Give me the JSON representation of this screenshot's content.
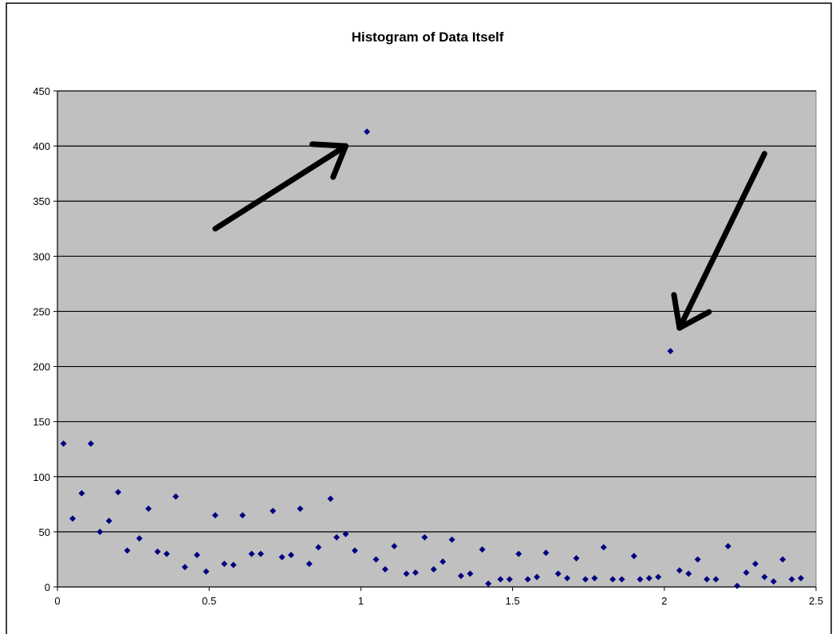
{
  "chart_data": {
    "type": "scatter",
    "title": "Histogram of Data Itself",
    "xlabel": "",
    "ylabel": "",
    "xlim": [
      0,
      2.5
    ],
    "ylim": [
      0,
      450
    ],
    "x_ticks": [
      "0",
      "0.5",
      "1",
      "1.5",
      "2",
      "2.5"
    ],
    "y_ticks": [
      "0",
      "50",
      "100",
      "150",
      "200",
      "250",
      "300",
      "350",
      "400",
      "450"
    ],
    "grid": "horizontal",
    "legend": "none",
    "plot_background": "#c0c0c0",
    "marker_color": "#000080",
    "annotations": [
      {
        "type": "arrow",
        "from": [
          0.52,
          325
        ],
        "to": [
          0.95,
          400
        ],
        "color": "#000000"
      },
      {
        "type": "arrow",
        "from": [
          2.33,
          393
        ],
        "to": [
          2.05,
          235
        ],
        "color": "#000000"
      }
    ],
    "points": [
      [
        0.02,
        130
      ],
      [
        0.05,
        62
      ],
      [
        0.08,
        85
      ],
      [
        0.11,
        130
      ],
      [
        0.14,
        50
      ],
      [
        0.17,
        60
      ],
      [
        0.2,
        86
      ],
      [
        0.23,
        33
      ],
      [
        0.27,
        44
      ],
      [
        0.3,
        71
      ],
      [
        0.33,
        32
      ],
      [
        0.36,
        30
      ],
      [
        0.39,
        82
      ],
      [
        0.42,
        18
      ],
      [
        0.46,
        29
      ],
      [
        0.49,
        14
      ],
      [
        0.52,
        65
      ],
      [
        0.55,
        21
      ],
      [
        0.58,
        20
      ],
      [
        0.61,
        65
      ],
      [
        0.64,
        30
      ],
      [
        0.67,
        30
      ],
      [
        0.71,
        69
      ],
      [
        0.74,
        27
      ],
      [
        0.77,
        29
      ],
      [
        0.8,
        71
      ],
      [
        0.83,
        21
      ],
      [
        0.86,
        36
      ],
      [
        0.9,
        80
      ],
      [
        0.92,
        45
      ],
      [
        0.95,
        48
      ],
      [
        0.98,
        33
      ],
      [
        1.02,
        413
      ],
      [
        1.05,
        25
      ],
      [
        1.08,
        16
      ],
      [
        1.11,
        37
      ],
      [
        1.15,
        12
      ],
      [
        1.18,
        13
      ],
      [
        1.21,
        45
      ],
      [
        1.24,
        16
      ],
      [
        1.27,
        23
      ],
      [
        1.3,
        43
      ],
      [
        1.33,
        10
      ],
      [
        1.36,
        12
      ],
      [
        1.4,
        34
      ],
      [
        1.42,
        3
      ],
      [
        1.46,
        7
      ],
      [
        1.49,
        7
      ],
      [
        1.52,
        30
      ],
      [
        1.55,
        7
      ],
      [
        1.58,
        9
      ],
      [
        1.61,
        31
      ],
      [
        1.65,
        12
      ],
      [
        1.68,
        8
      ],
      [
        1.71,
        26
      ],
      [
        1.74,
        7
      ],
      [
        1.77,
        8
      ],
      [
        1.8,
        36
      ],
      [
        1.83,
        7
      ],
      [
        1.86,
        7
      ],
      [
        1.9,
        28
      ],
      [
        1.92,
        7
      ],
      [
        1.95,
        8
      ],
      [
        1.98,
        9
      ],
      [
        2.02,
        214
      ],
      [
        2.05,
        15
      ],
      [
        2.08,
        12
      ],
      [
        2.11,
        25
      ],
      [
        2.14,
        7
      ],
      [
        2.17,
        7
      ],
      [
        2.21,
        37
      ],
      [
        2.24,
        1
      ],
      [
        2.27,
        13
      ],
      [
        2.3,
        21
      ],
      [
        2.33,
        9
      ],
      [
        2.36,
        5
      ],
      [
        2.39,
        25
      ],
      [
        2.42,
        7
      ],
      [
        2.45,
        8
      ]
    ]
  }
}
